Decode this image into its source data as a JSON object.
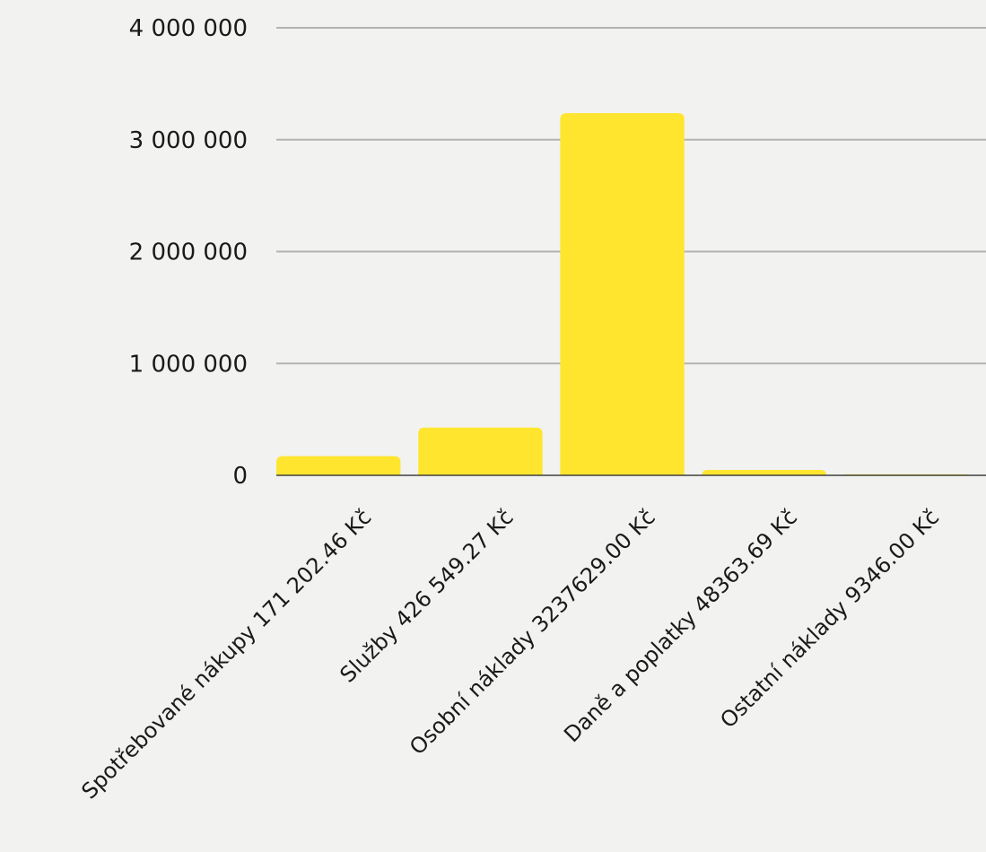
{
  "chart_data": {
    "type": "bar",
    "categories": [
      "Spotřebované nákupy 171 202.46 Kč",
      "Služby 426 549.27 Kč",
      "Osobní náklady 3237629.00 Kč",
      "Daně a poplatky 48363.69 Kč",
      "Ostatní náklady 9346.00 Kč"
    ],
    "values": [
      171202.46,
      426549.27,
      3237629.0,
      48363.69,
      9346.0
    ],
    "y_ticks": [
      0,
      1000000,
      2000000,
      3000000,
      4000000
    ],
    "y_tick_labels": [
      "0",
      "1 000 000",
      "2 000 000",
      "3 000 000",
      "4 000 000"
    ],
    "ylim": [
      0,
      4000000
    ],
    "grid": true,
    "colors": {
      "bar": "#ffe52e",
      "grid": "#b3b3b3",
      "axis": "#404040",
      "background": "#f2f2f0",
      "text": "#1a1a1a"
    }
  }
}
